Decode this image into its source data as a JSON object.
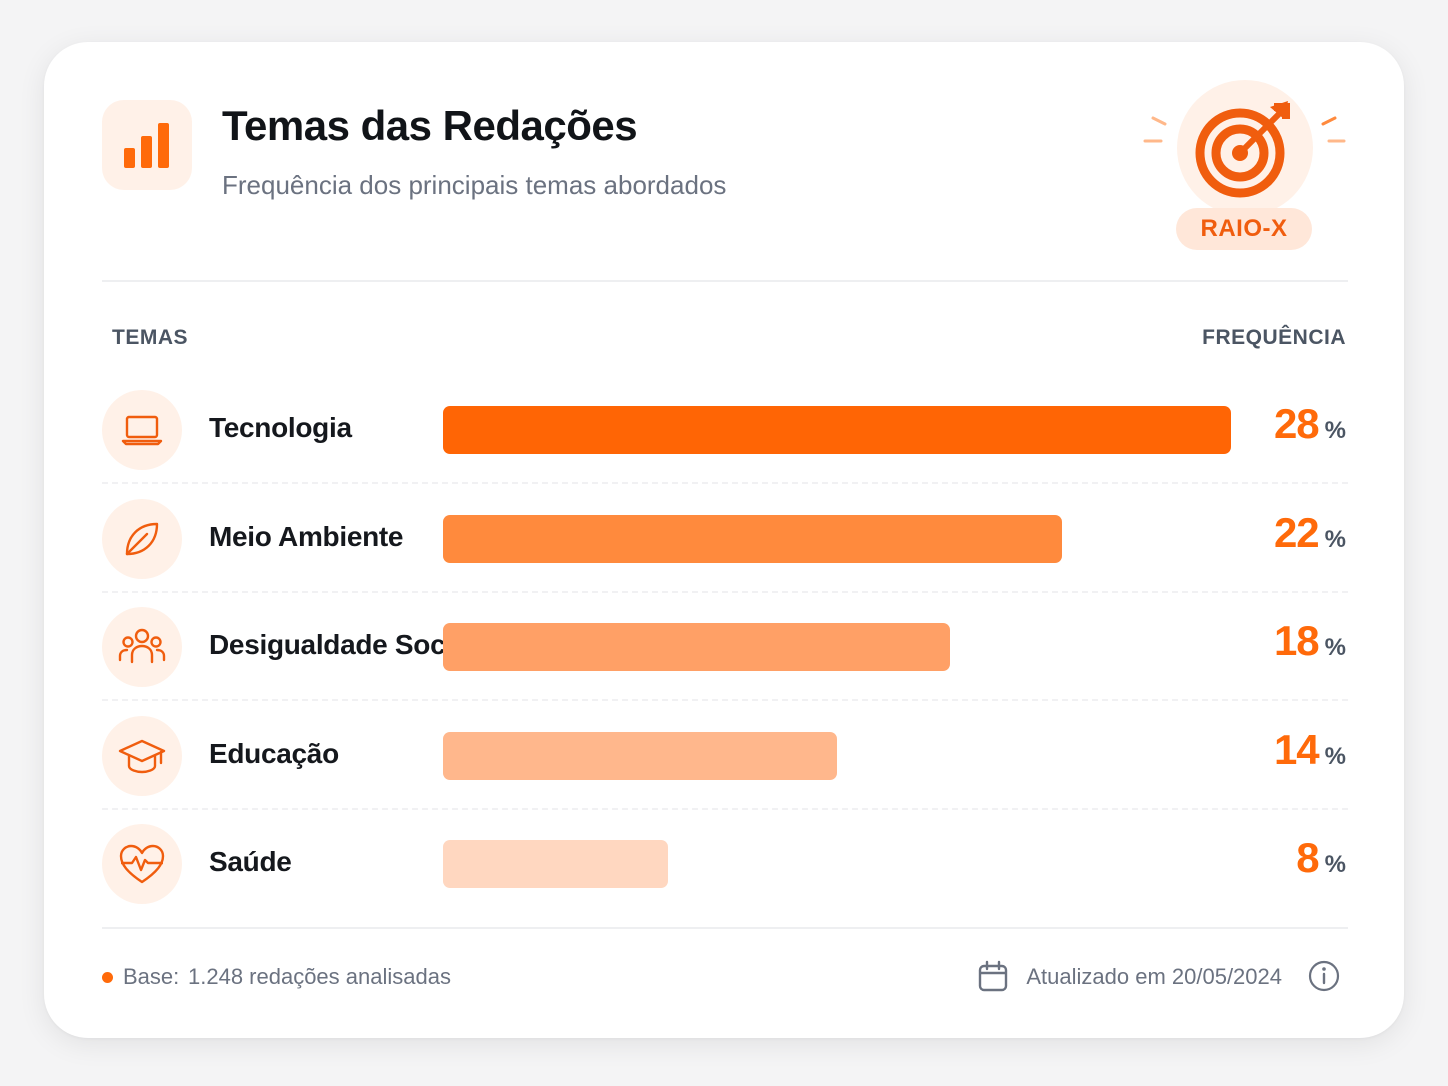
{
  "header": {
    "title": "Temas das Redações",
    "subtitle": "Frequência dos principais temas abordados",
    "icon": "bar-chart-icon",
    "badge_icon": "target-arrow-icon",
    "badge_label": "RAIO-X"
  },
  "columns": {
    "themes": "TEMAS",
    "frequency": "FREQUÊNCIA"
  },
  "chart_data": {
    "type": "bar",
    "orientation": "horizontal",
    "categories": [
      "Tecnologia",
      "Meio Ambiente",
      "Desigualdade Social",
      "Educação",
      "Saúde"
    ],
    "values": [
      28,
      22,
      18,
      14,
      8
    ],
    "unit": "%",
    "icons": [
      "laptop-icon",
      "leaf-icon",
      "people-group-icon",
      "graduation-cap-icon",
      "heart-pulse-icon"
    ],
    "colors": [
      "#ff6505",
      "#ff8a3d",
      "#ffa066",
      "#ffb78c",
      "#ffd7c0"
    ],
    "xlim": [
      0,
      28
    ],
    "title": "Temas das Redações",
    "grid": false,
    "legend": "none"
  },
  "footer": {
    "base_label": "Base:",
    "base_value": "1.248 redações analisadas",
    "updated": "Atualizado em 20/05/2024",
    "calendar_icon": "calendar-icon",
    "info_icon": "info-icon"
  },
  "colors": {
    "accent": "#ff6a0a",
    "accent_soft": "#fff1e8",
    "text_dark": "#111418",
    "text_muted": "#6b7280"
  }
}
